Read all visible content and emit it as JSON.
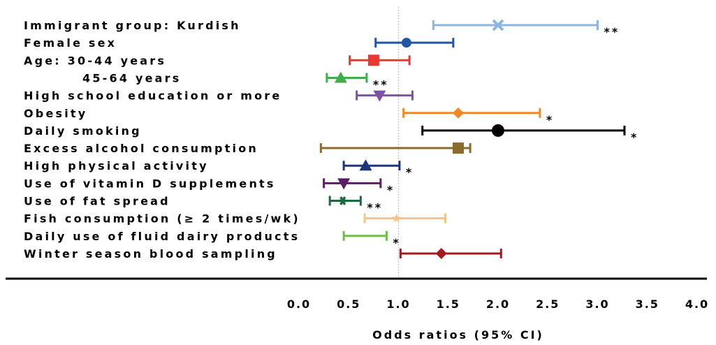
{
  "chart_data": {
    "type": "scatter",
    "title": "",
    "xlabel": "Odds ratios (95% CI)",
    "ylabel": "",
    "xlim": [
      0.0,
      4.0
    ],
    "x_ticks": [
      "0.0",
      "0.5",
      "1.0",
      "1.5",
      "2.0",
      "2.5",
      "3.0",
      "3.5",
      "4.0"
    ],
    "reference_line": 1.0,
    "grid": false,
    "legend": "none",
    "rows": [
      {
        "label": "Immigrant group: Kurdish",
        "or": 2.0,
        "low": 1.35,
        "high": 3.0,
        "sig": "**",
        "color": "#8db4e2",
        "marker": "x"
      },
      {
        "label": "Female sex",
        "or": 1.08,
        "low": 0.77,
        "high": 1.55,
        "sig": "",
        "color": "#2255a4",
        "marker": "circle"
      },
      {
        "label": "Age: 30-44 years",
        "or": 0.75,
        "low": 0.51,
        "high": 1.11,
        "sig": "",
        "color": "#e8382f",
        "marker": "square"
      },
      {
        "label": "45-64 years",
        "or": 0.42,
        "low": 0.28,
        "high": 0.68,
        "sig": "**",
        "color": "#3fae49",
        "marker": "triangle-up",
        "indent": true
      },
      {
        "label": "High school education or more",
        "or": 0.81,
        "low": 0.58,
        "high": 1.14,
        "sig": "",
        "color": "#7b52a8",
        "marker": "triangle-down"
      },
      {
        "label": "Obesity",
        "or": 1.6,
        "low": 1.05,
        "high": 2.42,
        "sig": "*",
        "color": "#f0892a",
        "marker": "diamond"
      },
      {
        "label": "Daily smoking",
        "or": 2.0,
        "low": 1.24,
        "high": 3.27,
        "sig": "*",
        "color": "#000000",
        "marker": "circle-large"
      },
      {
        "label": "Excess alcohol consumption",
        "or": 1.6,
        "low": 0.22,
        "high": 1.72,
        "sig": "",
        "color": "#8b6a2e",
        "marker": "square"
      },
      {
        "label": "High physical activity",
        "or": 0.67,
        "low": 0.45,
        "high": 1.01,
        "sig": "*",
        "color": "#1f3579",
        "marker": "triangle-up"
      },
      {
        "label": "Use of vitamin D supplements",
        "or": 0.45,
        "low": 0.25,
        "high": 0.82,
        "sig": "*",
        "color": "#5a1f62",
        "marker": "triangle-down"
      },
      {
        "label": "Use of fat spread",
        "or": 0.44,
        "low": 0.31,
        "high": 0.62,
        "sig": "**",
        "color": "#1a6b3e",
        "marker": "asterisk"
      },
      {
        "label": "Fish consumption (≥ 2 times/wk)",
        "or": 0.98,
        "low": 0.66,
        "high": 1.47,
        "sig": "",
        "color": "#f5c48a",
        "marker": "star"
      },
      {
        "label": "Daily use of fluid dairy products",
        "or": 0.63,
        "low": 0.45,
        "high": 0.88,
        "sig": "*",
        "color": "#6cbf47",
        "marker": "none"
      },
      {
        "label": "Winter season blood sampling",
        "or": 1.43,
        "low": 1.02,
        "high": 2.03,
        "sig": "",
        "color": "#a01e22",
        "marker": "diamond"
      }
    ]
  }
}
